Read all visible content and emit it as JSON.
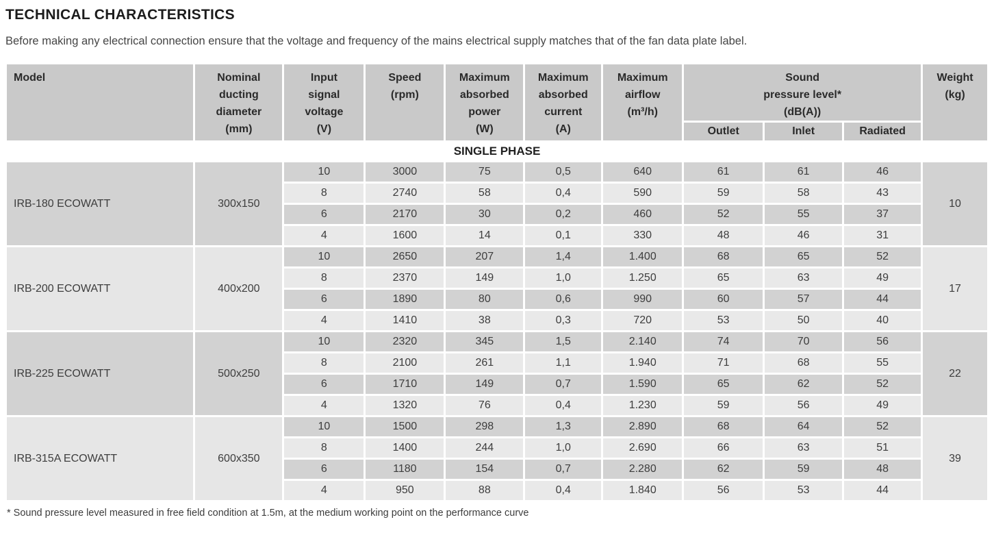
{
  "page": {
    "title": "TECHNICAL CHARACTERISTICS",
    "intro": "Before making any electrical connection ensure that the voltage and frequency of the mains electrical supply matches that of the fan data plate label.",
    "footnote": "* Sound pressure level measured in free field condition at 1.5m, at the medium working point on the performance curve"
  },
  "colors": {
    "header_bg": "#c9c9c9",
    "row_dark": "#d2d2d2",
    "row_light": "#e9e9e9",
    "group_cell_dark": "#d2d2d2",
    "group_cell_light": "#e6e6e6",
    "text": "#3d3d3d",
    "heading_text": "#1c1c1c"
  },
  "table": {
    "headers": {
      "model": "Model",
      "ducting": "Nominal\nducting\ndiameter\n(mm)",
      "voltage": "Input\nsignal\nvoltage\n(V)",
      "speed": "Speed\n(rpm)",
      "power": "Maximum\nabsorbed\npower\n(W)",
      "current": "Maximum\nabsorbed\ncurrent\n(A)",
      "airflow": "Maximum\nairflow\n(m³/h)",
      "sound": "Sound\npressure level*\n(dB(A))",
      "outlet": "Outlet",
      "inlet": "Inlet",
      "radiated": "Radiated",
      "weight": "Weight\n(kg)"
    },
    "section": "SINGLE PHASE",
    "groups": [
      {
        "model": "IRB-180 ECOWATT",
        "ducting": "300x150",
        "weight": "10",
        "rows": [
          [
            "10",
            "3000",
            "75",
            "0,5",
            "640",
            "61",
            "61",
            "46"
          ],
          [
            "8",
            "2740",
            "58",
            "0,4",
            "590",
            "59",
            "58",
            "43"
          ],
          [
            "6",
            "2170",
            "30",
            "0,2",
            "460",
            "52",
            "55",
            "37"
          ],
          [
            "4",
            "1600",
            "14",
            "0,1",
            "330",
            "48",
            "46",
            "31"
          ]
        ]
      },
      {
        "model": "IRB-200 ECOWATT",
        "ducting": "400x200",
        "weight": "17",
        "rows": [
          [
            "10",
            "2650",
            "207",
            "1,4",
            "1.400",
            "68",
            "65",
            "52"
          ],
          [
            "8",
            "2370",
            "149",
            "1,0",
            "1.250",
            "65",
            "63",
            "49"
          ],
          [
            "6",
            "1890",
            "80",
            "0,6",
            "990",
            "60",
            "57",
            "44"
          ],
          [
            "4",
            "1410",
            "38",
            "0,3",
            "720",
            "53",
            "50",
            "40"
          ]
        ]
      },
      {
        "model": "IRB-225 ECOWATT",
        "ducting": "500x250",
        "weight": "22",
        "rows": [
          [
            "10",
            "2320",
            "345",
            "1,5",
            "2.140",
            "74",
            "70",
            "56"
          ],
          [
            "8",
            "2100",
            "261",
            "1,1",
            "1.940",
            "71",
            "68",
            "55"
          ],
          [
            "6",
            "1710",
            "149",
            "0,7",
            "1.590",
            "65",
            "62",
            "52"
          ],
          [
            "4",
            "1320",
            "76",
            "0,4",
            "1.230",
            "59",
            "56",
            "49"
          ]
        ]
      },
      {
        "model": "IRB-315A ECOWATT",
        "ducting": "600x350",
        "weight": "39",
        "rows": [
          [
            "10",
            "1500",
            "298",
            "1,3",
            "2.890",
            "68",
            "64",
            "52"
          ],
          [
            "8",
            "1400",
            "244",
            "1,0",
            "2.690",
            "66",
            "63",
            "51"
          ],
          [
            "6",
            "1180",
            "154",
            "0,7",
            "2.280",
            "62",
            "59",
            "48"
          ],
          [
            "4",
            "950",
            "88",
            "0,4",
            "1.840",
            "56",
            "53",
            "44"
          ]
        ]
      }
    ]
  }
}
